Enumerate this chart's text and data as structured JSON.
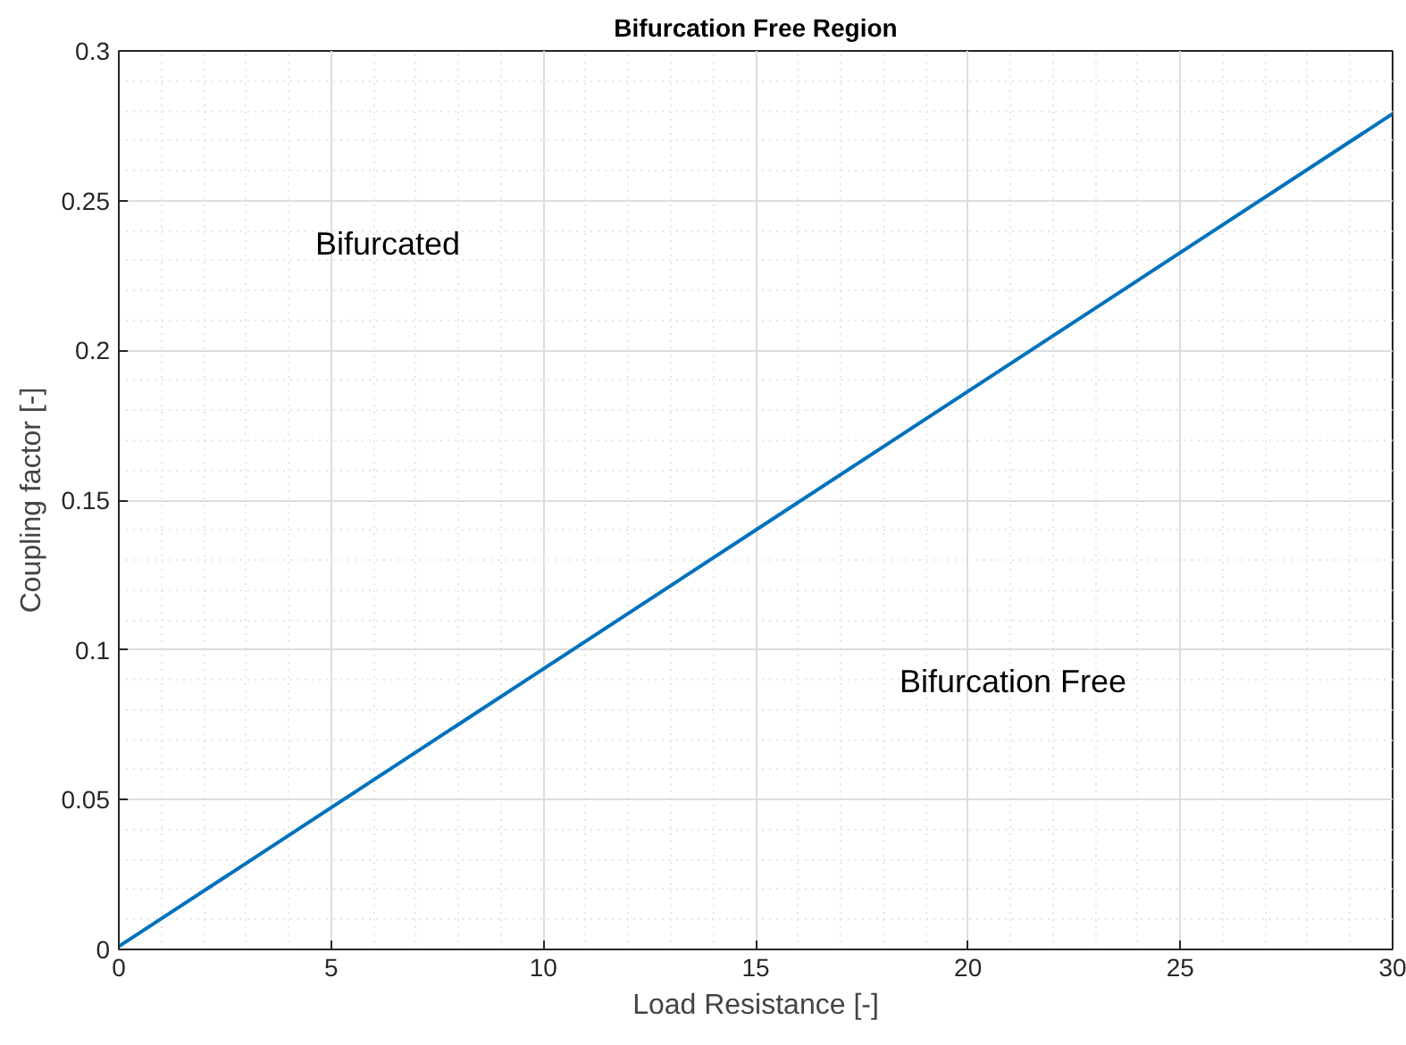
{
  "chart_data": {
    "type": "line",
    "title": "Bifurcation Free Region",
    "xlabel": "Load Resistance [-]",
    "ylabel": "Coupling factor [-]",
    "x": [
      0,
      15,
      30
    ],
    "series": [
      {
        "color": "#0072bd",
        "values": [
          0.001,
          0.14,
          0.279
        ]
      }
    ],
    "xlim": [
      0,
      30
    ],
    "ylim": [
      0,
      0.3
    ],
    "xticks": [
      0,
      5,
      10,
      15,
      20,
      25,
      30
    ],
    "yticks": [
      0,
      0.05,
      0.1,
      0.15,
      0.2,
      0.25,
      0.3
    ],
    "grid": true,
    "marker": "none",
    "line_style": "solid",
    "annotations": [
      "Bifurcated",
      "Bifurcation Free"
    ]
  }
}
